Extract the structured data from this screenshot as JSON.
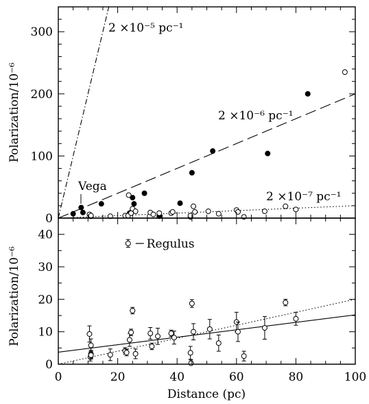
{
  "chart_data": [
    {
      "type": "scatter",
      "panel": "top",
      "ylabel": "Polarization/10⁻⁶",
      "xlim": [
        0,
        100
      ],
      "ylim": [
        0,
        340
      ],
      "y_ticks": [
        0,
        100,
        200,
        300
      ],
      "x_ticks": [
        0,
        20,
        40,
        60,
        80,
        100
      ],
      "series": [
        {
          "marker": "filled-circle",
          "points": [
            {
              "x": 5,
              "y": 7
            },
            {
              "x": 7.7,
              "y": 17
            },
            {
              "x": 8.3,
              "y": 9
            },
            {
              "x": 14.5,
              "y": 23
            },
            {
              "x": 24,
              "y": 8
            },
            {
              "x": 24.5,
              "y": 9
            },
            {
              "x": 25,
              "y": 33
            },
            {
              "x": 25.5,
              "y": 23
            },
            {
              "x": 29,
              "y": 40
            },
            {
              "x": 34,
              "y": 3
            },
            {
              "x": 41,
              "y": 24
            },
            {
              "x": 44.5,
              "y": 2
            },
            {
              "x": 45,
              "y": 73
            },
            {
              "x": 52,
              "y": 108
            },
            {
              "x": 70.5,
              "y": 104
            },
            {
              "x": 84,
              "y": 200
            }
          ]
        },
        {
          "marker": "open-circle",
          "points": [
            {
              "x": 10.5,
              "y": 6
            },
            {
              "x": 11,
              "y": 3
            },
            {
              "x": 11,
              "y": 4
            },
            {
              "x": 17.5,
              "y": 3
            },
            {
              "x": 22.5,
              "y": 4
            },
            {
              "x": 23.5,
              "y": 4
            },
            {
              "x": 23.7,
              "y": 37
            },
            {
              "x": 24.5,
              "y": 8
            },
            {
              "x": 25,
              "y": 15
            },
            {
              "x": 26,
              "y": 11
            },
            {
              "x": 31,
              "y": 9
            },
            {
              "x": 32,
              "y": 6
            },
            {
              "x": 34,
              "y": 8
            },
            {
              "x": 38,
              "y": 8
            },
            {
              "x": 38.5,
              "y": 10
            },
            {
              "x": 44.5,
              "y": 4
            },
            {
              "x": 45.5,
              "y": 19
            },
            {
              "x": 46,
              "y": 10
            },
            {
              "x": 50.5,
              "y": 11
            },
            {
              "x": 54,
              "y": 7
            },
            {
              "x": 60,
              "y": 13
            },
            {
              "x": 60.5,
              "y": 10
            },
            {
              "x": 62.5,
              "y": 2
            },
            {
              "x": 69.5,
              "y": 11
            },
            {
              "x": 76.5,
              "y": 19
            },
            {
              "x": 80,
              "y": 14
            },
            {
              "x": 96.5,
              "y": 235
            }
          ]
        }
      ],
      "lines": [
        {
          "label": "2 ×10⁻⁵ pc⁻¹",
          "slope": 20,
          "intercept": 0,
          "style": "dash-dot"
        },
        {
          "label": "2 ×10⁻⁶ pc⁻¹",
          "slope": 2,
          "intercept": 0,
          "style": "long-dash"
        },
        {
          "label": "2 ×10⁻⁷ pc⁻¹",
          "slope": 0.2,
          "intercept": 0,
          "style": "dotted"
        }
      ],
      "annotations": [
        {
          "text": "Vega",
          "x": 7.7,
          "y": 17
        }
      ]
    },
    {
      "type": "scatter",
      "panel": "bottom",
      "xlabel": "Distance (pc)",
      "ylabel": "Polarization/10⁻⁶",
      "xlim": [
        0,
        100
      ],
      "ylim": [
        0,
        45
      ],
      "y_ticks": [
        0,
        10,
        20,
        30,
        40
      ],
      "x_ticks": [
        0,
        20,
        40,
        60,
        80,
        100
      ],
      "x_tick_labels": [
        "0",
        "20",
        "40",
        "60",
        "80",
        "100"
      ],
      "series": [
        {
          "marker": "open-circle-errorbar",
          "points": [
            {
              "x": 10.5,
              "y": 9.3,
              "err": 2.5
            },
            {
              "x": 10.8,
              "y": 2.2,
              "err": 1.2
            },
            {
              "x": 11,
              "y": 3.1,
              "err": 1.2
            },
            {
              "x": 11,
              "y": 2.8,
              "err": 1.2
            },
            {
              "x": 11,
              "y": 5.8,
              "err": 2.0
            },
            {
              "x": 17.5,
              "y": 2.9,
              "err": 1.8
            },
            {
              "x": 22.5,
              "y": 4.1,
              "err": 1.0
            },
            {
              "x": 23,
              "y": 3.6,
              "err": 1.0
            },
            {
              "x": 24,
              "y": 7.5,
              "err": 2.0
            },
            {
              "x": 24.5,
              "y": 9.8,
              "err": 1.0
            },
            {
              "x": 25,
              "y": 16.5,
              "err": 1.0
            },
            {
              "x": 26,
              "y": 3.2,
              "err": 1.5
            },
            {
              "x": 31,
              "y": 9.5,
              "err": 1.8
            },
            {
              "x": 31.5,
              "y": 5.5,
              "err": 1.0
            },
            {
              "x": 33.5,
              "y": 8.6,
              "err": 2.5
            },
            {
              "x": 38,
              "y": 9.5,
              "err": 1.0
            },
            {
              "x": 39,
              "y": 8.2,
              "err": 2.0
            },
            {
              "x": 44.5,
              "y": 3.5,
              "err": 2.0
            },
            {
              "x": 44.7,
              "y": 0.3,
              "err": 1.0
            },
            {
              "x": 45,
              "y": 18.7,
              "err": 1.2
            },
            {
              "x": 45.5,
              "y": 10.0,
              "err": 2.5
            },
            {
              "x": 51,
              "y": 10.8,
              "err": 3.0
            },
            {
              "x": 54,
              "y": 6.5,
              "err": 2.5
            },
            {
              "x": 60,
              "y": 13.0,
              "err": 3.0
            },
            {
              "x": 60.5,
              "y": 10.0,
              "err": 3.0
            },
            {
              "x": 62.5,
              "y": 2.5,
              "err": 1.5
            },
            {
              "x": 69.5,
              "y": 11.2,
              "err": 3.5
            },
            {
              "x": 76.5,
              "y": 19.0,
              "err": 1.0
            },
            {
              "x": 80,
              "y": 14.0,
              "err": 2.0
            }
          ]
        }
      ],
      "lines": [
        {
          "slope": 0.115,
          "intercept": 3.7,
          "style": "solid"
        },
        {
          "slope": 0.2,
          "intercept": 0,
          "style": "dotted"
        }
      ],
      "legend": {
        "text": "Regulus",
        "x": 23.5,
        "y": 37.2,
        "err": 1.2
      }
    }
  ]
}
